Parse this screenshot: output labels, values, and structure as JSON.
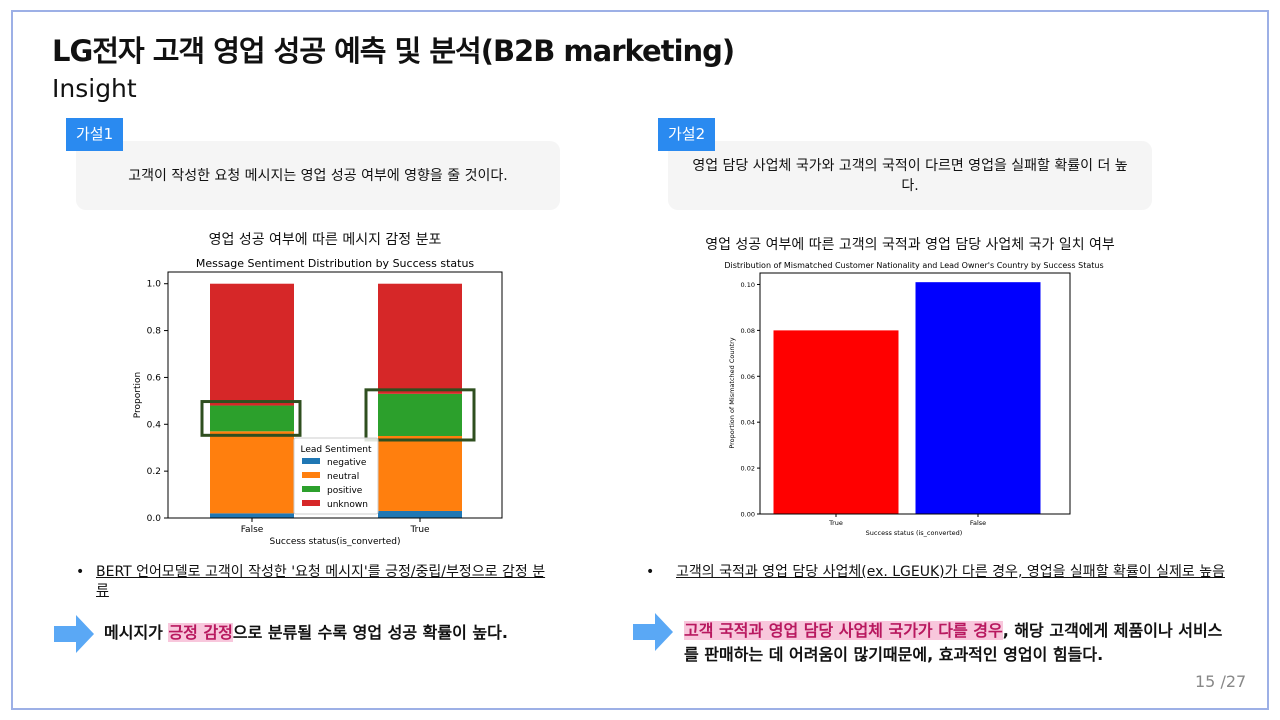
{
  "header": {
    "title": "LG전자 고객 영업 성공 예측 및 분석(B2B marketing)",
    "subtitle": "Insight"
  },
  "left": {
    "tag": "가설1",
    "hypothesis": "고객이 작성한 요청 메시지는 영업 성공 여부에 영향을 줄 것이다.",
    "caption": "영업 성공 여부에 따른 메시지 감정 분포",
    "bullet": "BERT 언어모델로 고객이 작성한 '요청 메시지'를 긍정/중립/부정으로 감정 분류",
    "conclusion_pre": "메시지가 ",
    "conclusion_hl": "긍정 감정",
    "conclusion_post": "으로 분류될 수록 영업 성공 확률이 높다."
  },
  "right": {
    "tag": "가설2",
    "hypothesis": "영업 담당 사업체 국가와 고객의 국적이 다르면 영업을 실패할 확률이 더 높다.",
    "caption": "영업 성공 여부에 따른 고객의 국적과 영업 담당 사업체 국가 일치 여부",
    "bullet": "고객의 국적과 영업 담당 사업체(ex. LGEUK)가 다른 경우, 영업을 실패할 확률이 실제로 높음",
    "conclusion_hl": "고객 국적과 영업 담당 사업체 국가가 다를 경우",
    "conclusion_post": ", 해당 고객에게 제품이나 서비스를 판매하는 데 어려움이 많기때문에, 효과적인 영업이 힘들다."
  },
  "page": {
    "current": "15",
    "total": "/27"
  },
  "colors": {
    "accent": "#2a8af0",
    "highlight_bg": "#f8c7dc",
    "highlight_text": "#b8185f",
    "arrow": "#5aa8f5"
  },
  "chart_data": [
    {
      "type": "bar",
      "stacked": true,
      "title": "Message Sentiment Distribution by Success status",
      "xlabel": "Success status(is_converted)",
      "ylabel": "Proportion",
      "categories": [
        "False",
        "True"
      ],
      "ylim": [
        0,
        1.05
      ],
      "yticks": [
        "0.0",
        "0.2",
        "0.4",
        "0.6",
        "0.8",
        "1.0"
      ],
      "legend_title": "Lead Sentiment",
      "legend_position": "center",
      "series": [
        {
          "name": "negative",
          "color": "#1f77b4",
          "values": [
            0.02,
            0.03
          ]
        },
        {
          "name": "neutral",
          "color": "#ff7f0e",
          "values": [
            0.35,
            0.32
          ]
        },
        {
          "name": "positive",
          "color": "#2ca02c",
          "values": [
            0.11,
            0.18
          ]
        },
        {
          "name": "unknown",
          "color": "#d62728",
          "values": [
            0.52,
            0.47
          ]
        }
      ],
      "highlighted": "positive"
    },
    {
      "type": "bar",
      "title": "Distribution of Mismatched Customer Nationality and Lead Owner's Country by Success Status",
      "xlabel": "Success status (is_converted)",
      "ylabel": "Proportion of Mismatched Country",
      "categories": [
        "True",
        "False"
      ],
      "values": [
        0.08,
        0.101
      ],
      "colors": [
        "#ff0000",
        "#0000ff"
      ],
      "ylim": [
        0,
        0.105
      ],
      "yticks": [
        "0.00",
        "0.02",
        "0.04",
        "0.06",
        "0.08",
        "0.10"
      ]
    }
  ]
}
